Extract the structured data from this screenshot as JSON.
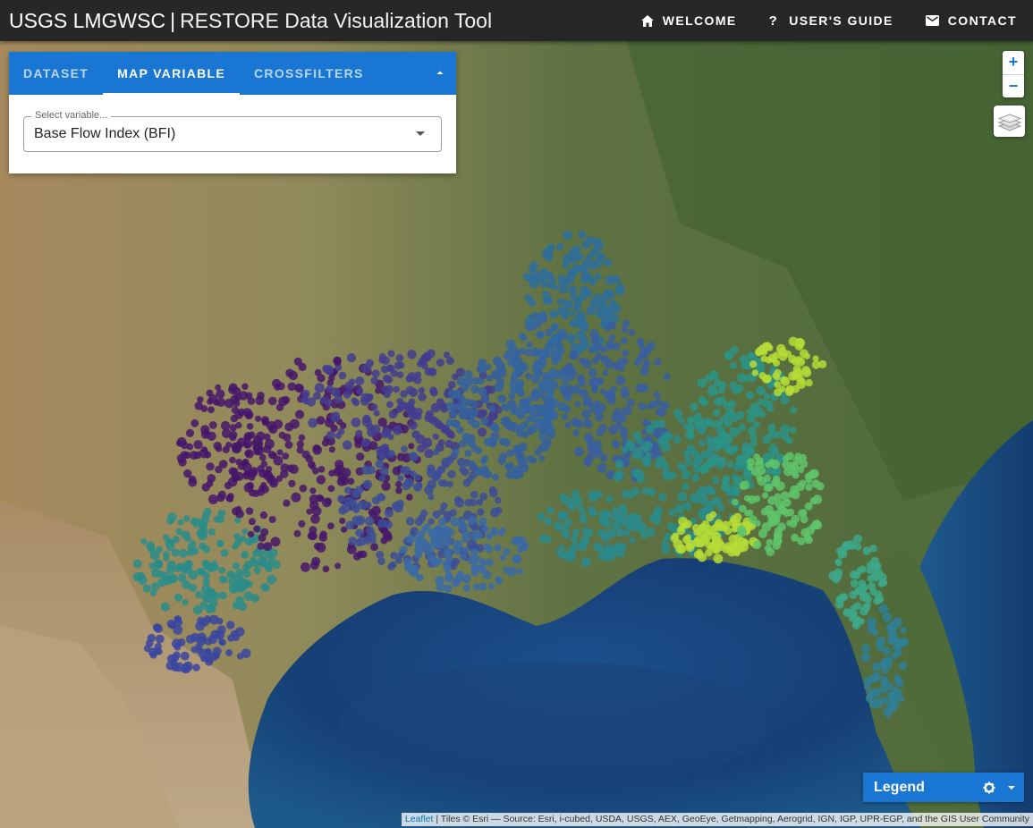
{
  "header": {
    "org": "USGS LMGWSC",
    "separator": "|",
    "tool": "RESTORE Data Visualization Tool",
    "nav": [
      {
        "label": "WELCOME",
        "icon": "home-icon"
      },
      {
        "label": "USER'S GUIDE",
        "icon": "help-icon"
      },
      {
        "label": "CONTACT",
        "icon": "mail-icon"
      }
    ]
  },
  "panel": {
    "tabs": [
      {
        "label": "DATASET",
        "active": false
      },
      {
        "label": "MAP VARIABLE",
        "active": true
      },
      {
        "label": "CROSSFILTERS",
        "active": false
      }
    ],
    "select_label": "Select variable...",
    "select_value": "Base Flow Index (BFI)"
  },
  "map_controls": {
    "zoom_in": "+",
    "zoom_out": "−",
    "layers_icon": "layers-icon"
  },
  "legend": {
    "title": "Legend",
    "icon": "gear-icon"
  },
  "attribution": {
    "link": "Leaflet",
    "text": " | Tiles © Esri — Source: Esri, i-cubed, USDA, USGS, AEX, GeoEye, Getmapping, Aerogrid, IGN, IGP, UPR-EGP, and the GIS User Community"
  },
  "colors": {
    "appbar": "#272727",
    "accent": "#1976d2",
    "low_bfi": "#46166b",
    "mid_bfi": "#2a8c8a",
    "high_bfi": "#b5dc36"
  }
}
